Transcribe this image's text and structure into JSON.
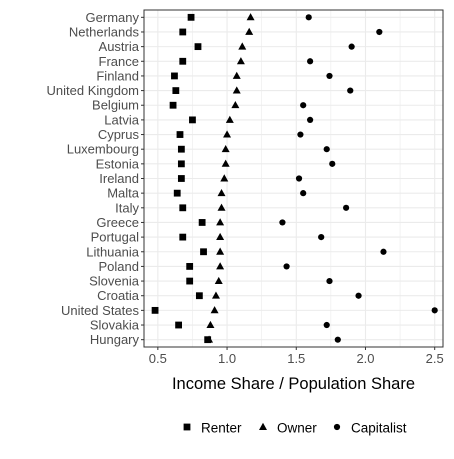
{
  "chart_data": {
    "type": "scatter",
    "orientation": "horizontal-dot",
    "title": "",
    "xlabel": "Income Share / Population Share",
    "ylabel": "",
    "xlim": [
      0.4,
      2.56
    ],
    "xticks": [
      0.5,
      1.0,
      1.5,
      2.0,
      2.5
    ],
    "xtick_labels": [
      "0.5",
      "1.0",
      "1.5",
      "2.0",
      "2.5"
    ],
    "grid": true,
    "legend_position": "bottom",
    "categories": [
      "Germany",
      "Netherlands",
      "Austria",
      "France",
      "Finland",
      "United Kingdom",
      "Belgium",
      "Latvia",
      "Cyprus",
      "Luxembourg",
      "Estonia",
      "Ireland",
      "Malta",
      "Italy",
      "Greece",
      "Portugal",
      "Lithuania",
      "Poland",
      "Slovenia",
      "Croatia",
      "United States",
      "Slovakia",
      "Hungary"
    ],
    "series": [
      {
        "name": "Renter",
        "marker": "square",
        "values": [
          0.74,
          0.68,
          0.79,
          0.68,
          0.62,
          0.63,
          0.61,
          0.75,
          0.66,
          0.67,
          0.67,
          0.67,
          0.64,
          0.68,
          0.82,
          0.68,
          0.83,
          0.73,
          0.73,
          0.8,
          0.48,
          0.65,
          0.86
        ]
      },
      {
        "name": "Owner",
        "marker": "triangle",
        "values": [
          1.17,
          1.16,
          1.11,
          1.1,
          1.07,
          1.07,
          1.06,
          1.02,
          1.0,
          0.99,
          0.99,
          0.98,
          0.96,
          0.96,
          0.95,
          0.95,
          0.95,
          0.95,
          0.94,
          0.92,
          0.91,
          0.88,
          0.87
        ]
      },
      {
        "name": "Capitalist",
        "marker": "circle",
        "values": [
          1.59,
          2.1,
          1.9,
          1.6,
          1.74,
          1.89,
          1.55,
          1.6,
          1.53,
          1.72,
          1.76,
          1.52,
          1.55,
          1.86,
          1.4,
          1.68,
          2.13,
          1.43,
          1.74,
          1.95,
          2.5,
          1.72,
          1.8
        ]
      }
    ],
    "colors": {
      "marker": "#000000",
      "grid": "#ebebeb",
      "axis_text": "#4d4d4d",
      "panel_border": "#333333"
    }
  }
}
